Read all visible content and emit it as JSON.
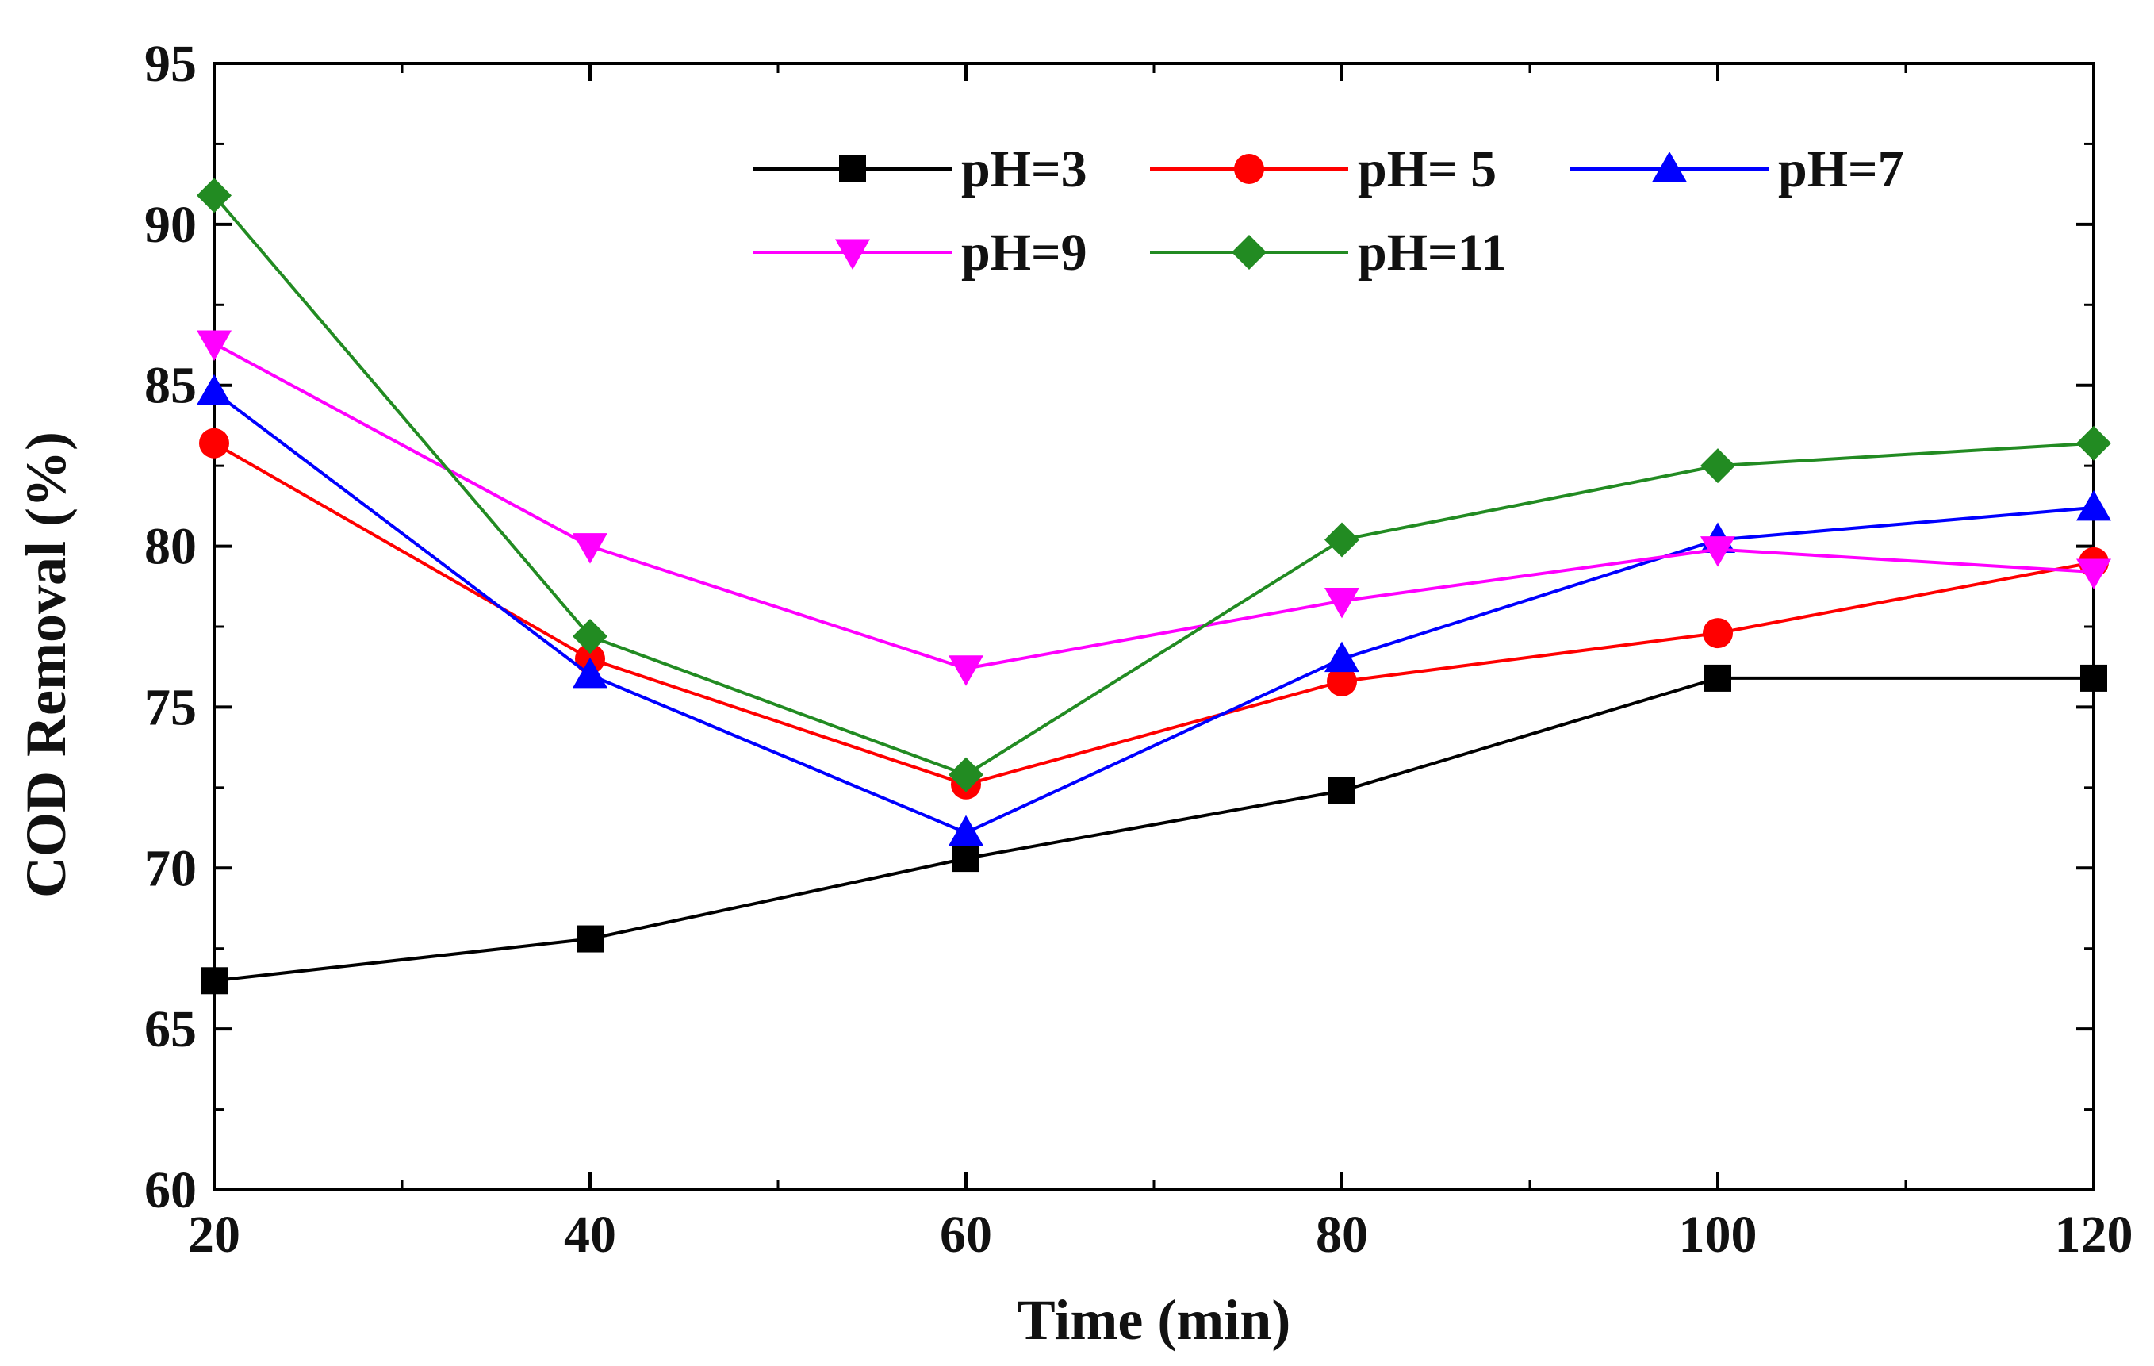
{
  "chart_data": {
    "type": "line",
    "title": "",
    "xlabel": "Time (min)",
    "ylabel": "COD Removal (%)",
    "x": [
      20,
      40,
      60,
      80,
      100,
      120
    ],
    "xlim": [
      20,
      120
    ],
    "ylim": [
      60,
      95
    ],
    "xticks": [
      20,
      40,
      60,
      80,
      100,
      120
    ],
    "yticks": [
      60,
      65,
      70,
      75,
      80,
      85,
      90,
      95
    ],
    "xtick_labels": [
      "20",
      "40",
      "60",
      "80",
      "100",
      "120"
    ],
    "ytick_labels": [
      "60",
      "65",
      "70",
      "75",
      "80",
      "85",
      "90",
      "95"
    ],
    "grid": false,
    "legend_position": "top",
    "series": [
      {
        "name": "pH=3",
        "color": "#000000",
        "marker": "square",
        "values": [
          66.5,
          67.8,
          70.3,
          72.4,
          75.9,
          75.9
        ]
      },
      {
        "name": "pH= 5",
        "color": "#ff0000",
        "marker": "circle",
        "values": [
          83.2,
          76.5,
          72.6,
          75.8,
          77.3,
          79.5
        ]
      },
      {
        "name": "pH=7",
        "color": "#0000ff",
        "marker": "triangle-up",
        "values": [
          84.8,
          76.0,
          71.1,
          76.5,
          80.2,
          81.2
        ]
      },
      {
        "name": "pH=9",
        "color": "#ff00ff",
        "marker": "triangle-down",
        "values": [
          86.3,
          80.0,
          76.2,
          78.3,
          79.9,
          79.2
        ]
      },
      {
        "name": "pH=11",
        "color": "#228b22",
        "marker": "diamond",
        "values": [
          90.9,
          77.2,
          72.9,
          80.2,
          82.5,
          83.2
        ]
      }
    ]
  }
}
